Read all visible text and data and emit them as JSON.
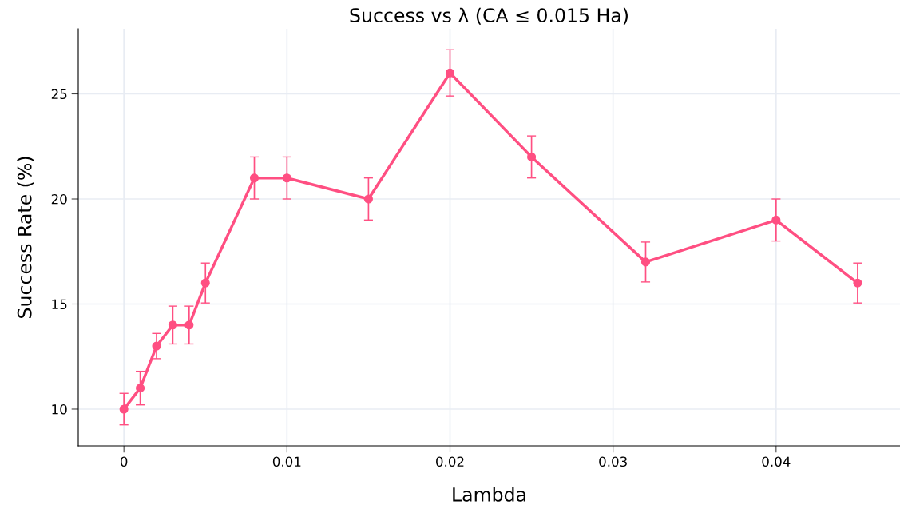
{
  "chart_data": {
    "type": "line",
    "title": "Success vs λ (CA ≤ 0.015 Ha)",
    "xlabel": "Lambda",
    "ylabel": "Success Rate (%)",
    "x": [
      0,
      0.001,
      0.002,
      0.003,
      0.004,
      0.005,
      0.008,
      0.01,
      0.015,
      0.02,
      0.025,
      0.032,
      0.04,
      0.045
    ],
    "series": [
      {
        "color": "#ff4f82",
        "values": [
          10,
          11,
          13,
          14,
          14,
          16,
          21,
          21,
          20,
          26,
          22,
          17,
          19,
          16
        ],
        "errors": [
          0.75,
          0.8,
          0.6,
          0.9,
          0.9,
          0.95,
          1.0,
          1.0,
          1.0,
          1.1,
          1.0,
          0.95,
          1.0,
          0.95
        ]
      }
    ],
    "xlim": [
      -0.0028,
      0.0476
    ],
    "ylim": [
      8.25,
      28.1
    ],
    "xticks": [
      0,
      0.01,
      0.02,
      0.03,
      0.04
    ],
    "yticks": [
      10,
      15,
      20,
      25
    ],
    "grid": true,
    "marker": "circle",
    "line_style": "solid",
    "legend": false
  }
}
